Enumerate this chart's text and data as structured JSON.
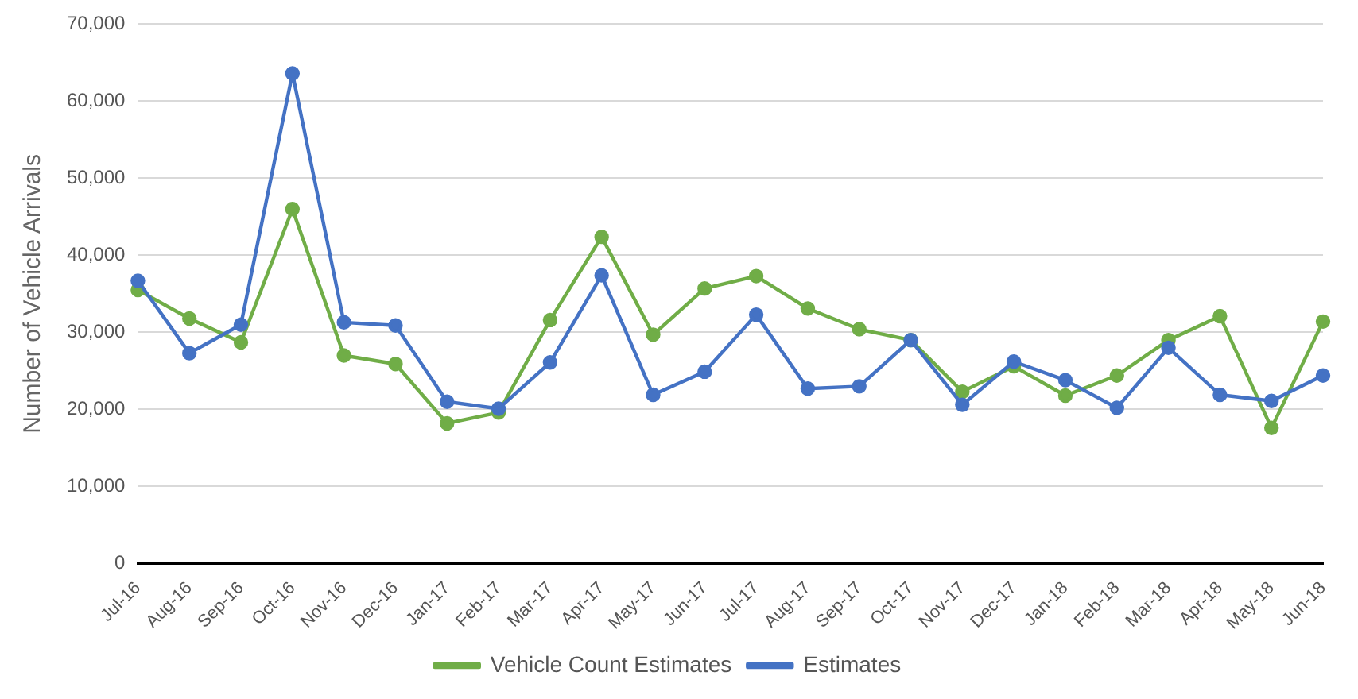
{
  "chart_data": {
    "type": "line",
    "ylabel": "Number of Vehicle Arrivals",
    "categories": [
      "Jul-16",
      "Aug-16",
      "Sep-16",
      "Oct-16",
      "Nov-16",
      "Dec-16",
      "Jan-17",
      "Feb-17",
      "Mar-17",
      "Apr-17",
      "May-17",
      "Jun-17",
      "Jul-17",
      "Aug-17",
      "Sep-17",
      "Oct-17",
      "Nov-17",
      "Dec-17",
      "Jan-18",
      "Feb-18",
      "Mar-18",
      "Apr-18",
      "May-18",
      "Jun-18"
    ],
    "series": [
      {
        "name": "Vehicle Count Estimates",
        "color": "#70ad47",
        "values": [
          35500,
          31800,
          28700,
          46000,
          27000,
          25900,
          18200,
          19600,
          31600,
          42400,
          29700,
          35700,
          37300,
          33100,
          30400,
          29000,
          22300,
          25600,
          21800,
          24400,
          29000,
          32100,
          17600,
          31400
        ]
      },
      {
        "name": "Estimates",
        "color": "#4472c4",
        "values": [
          36700,
          27300,
          31000,
          63600,
          31300,
          30900,
          21000,
          20100,
          26100,
          37400,
          21900,
          24900,
          32300,
          22700,
          23000,
          29000,
          20600,
          26200,
          23800,
          20200,
          28000,
          21900,
          21100,
          24400
        ]
      }
    ],
    "ylim": [
      0,
      70000
    ],
    "yticks": [
      0,
      {
        "value": 10000,
        "label": "10,000"
      },
      {
        "value": 20000,
        "label": "20,000"
      },
      {
        "value": 30000,
        "label": "30,000"
      },
      {
        "value": 40000,
        "label": "40,000"
      },
      {
        "value": 50000,
        "label": "50,000"
      },
      {
        "value": 60000,
        "label": "60,000"
      },
      {
        "value": 70000,
        "label": "70,000"
      }
    ],
    "grid": "y",
    "legend": "bottom",
    "marker": "circle",
    "line_style": "solid"
  }
}
